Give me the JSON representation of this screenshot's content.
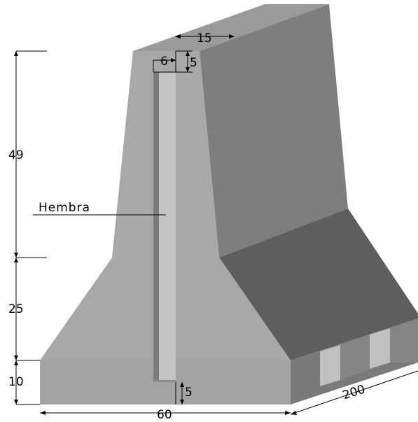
{
  "dimensions": {
    "top_width": "15",
    "groove_width": "6",
    "groove_depth_top": "5",
    "upper_height": "49",
    "middle_height": "25",
    "base_height": "10",
    "groove_depth_bottom": "5",
    "base_width": "60",
    "length": "200"
  },
  "labels": {
    "groove": "Hembra"
  },
  "colors": {
    "front_face": "#a8a8a8",
    "front_face_dark": "#9f9f9f",
    "side_face": "#7e7e7e",
    "top_face": "#9a9a9a",
    "slope_face": "#5e5e5e",
    "groove_light": "#c4c4c4",
    "groove_shadow": "#7c7c7c"
  }
}
